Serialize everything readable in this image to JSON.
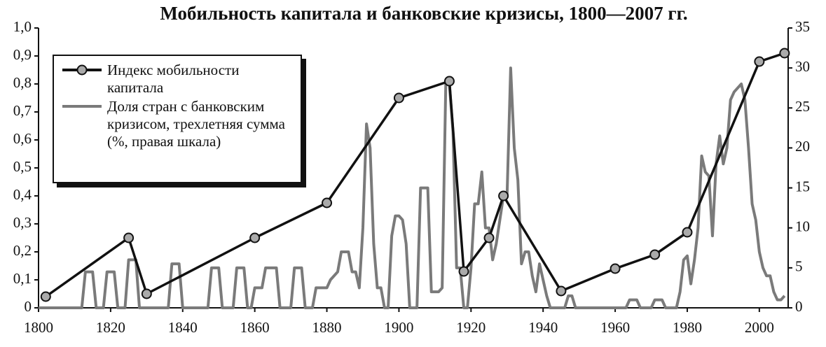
{
  "chart_data": {
    "type": "line",
    "title": "Мобильность капитала и банковские кризисы, 1800—2007 гг.",
    "xlim": [
      1800,
      2008
    ],
    "xticks": [
      1800,
      1820,
      1840,
      1860,
      1880,
      1900,
      1920,
      1940,
      1960,
      1980,
      2000
    ],
    "ylim": [
      0,
      1
    ],
    "yticks": [
      0,
      {
        "value": 0.1,
        "label": "0,1"
      },
      {
        "value": 0.2,
        "label": "0,2"
      },
      {
        "value": 0.3,
        "label": "0,3"
      },
      {
        "value": 0.4,
        "label": "0,4"
      },
      {
        "value": 0.5,
        "label": "0,5"
      },
      {
        "value": 0.6,
        "label": "0,6"
      },
      {
        "value": 0.7,
        "label": "0,7"
      },
      {
        "value": 0.8,
        "label": "0,8"
      },
      {
        "value": 0.9,
        "label": "0,9"
      },
      {
        "value": 1,
        "label": "1,0"
      }
    ],
    "y2lim": [
      0,
      35
    ],
    "y2ticks": [
      0,
      5,
      10,
      15,
      20,
      25,
      30,
      35
    ],
    "legend": "top-left",
    "series": [
      {
        "name": "Индекс мобильности капитала",
        "color": "#111111",
        "marker": true,
        "x": [
          1802,
          1825,
          1830,
          1860,
          1880,
          1900,
          1914,
          1918,
          1925,
          1929,
          1945,
          1960,
          1971,
          1980,
          2000,
          2007
        ],
        "values": [
          0.04,
          0.25,
          0.05,
          0.25,
          0.375,
          0.75,
          0.81,
          0.13,
          0.25,
          0.4,
          0.06,
          0.14,
          0.19,
          0.27,
          0.88,
          0.91
        ]
      },
      {
        "name": "Доля стран с банковским кризисом, трехлетняя сумма (%, правая шкала)",
        "color": "#7a7a7a",
        "axis": "y2",
        "x": [
          1800,
          1812,
          1813,
          1815,
          1816,
          1818,
          1819,
          1821,
          1822,
          1824,
          1825,
          1827,
          1828,
          1836,
          1837,
          1839,
          1840,
          1847,
          1848,
          1850,
          1851,
          1854,
          1855,
          1857,
          1858,
          1859,
          1860,
          1862,
          1863,
          1866,
          1867,
          1870,
          1871,
          1873,
          1874,
          1876,
          1877,
          1880,
          1881,
          1883,
          1884,
          1886,
          1887,
          1888,
          1889,
          1890,
          1891,
          1892,
          1893,
          1894,
          1895,
          1896,
          1897,
          1898,
          1899,
          1900,
          1901,
          1902,
          1903,
          1905,
          1906,
          1908,
          1909,
          1911,
          1912,
          1913,
          1914,
          1915,
          1916,
          1917,
          1918,
          1919,
          1920,
          1921,
          1922,
          1923,
          1924,
          1925,
          1926,
          1927,
          1928,
          1929,
          1930,
          1931,
          1932,
          1933,
          1934,
          1935,
          1936,
          1937,
          1938,
          1939,
          1940,
          1941,
          1942,
          1946,
          1947,
          1948,
          1949,
          1963,
          1964,
          1966,
          1967,
          1970,
          1971,
          1973,
          1974,
          1977,
          1978,
          1979,
          1980,
          1981,
          1982,
          1983,
          1984,
          1985,
          1986,
          1987,
          1988,
          1989,
          1990,
          1991,
          1992,
          1993,
          1994,
          1995,
          1996,
          1997,
          1998,
          1999,
          2000,
          2001,
          2002,
          2003,
          2004,
          2005,
          2006,
          2007
        ],
        "values": [
          0,
          0,
          4.5,
          4.5,
          0,
          0,
          4.5,
          4.5,
          0,
          0,
          6,
          6,
          0,
          0,
          5.5,
          5.5,
          0,
          0,
          5,
          5,
          0,
          0,
          5,
          5,
          0,
          0,
          2.5,
          2.5,
          5,
          5,
          0,
          0,
          5,
          5,
          0,
          0,
          2.5,
          2.5,
          3.5,
          4.5,
          7,
          7,
          4.5,
          4.5,
          2.5,
          10,
          23,
          20,
          8,
          2.5,
          2.5,
          0,
          0,
          9,
          11.5,
          11.5,
          11,
          8,
          0,
          0,
          15,
          15,
          2,
          2,
          2.5,
          28,
          28,
          22,
          5,
          5,
          0,
          0,
          5,
          13,
          13,
          17,
          10,
          10,
          6,
          8,
          11,
          14,
          14,
          30,
          20,
          16,
          5.5,
          7,
          7,
          4,
          2,
          5.5,
          3.5,
          1.5,
          0,
          0,
          1.5,
          1.5,
          0,
          0,
          1,
          1,
          0,
          0,
          1,
          1,
          0,
          0,
          2,
          6,
          6.5,
          3,
          6,
          10,
          19,
          17,
          16.5,
          9,
          18,
          21.5,
          18,
          20,
          26,
          27,
          27.5,
          28,
          26,
          20,
          13,
          11,
          7,
          5,
          4,
          4,
          2,
          1,
          1,
          1.5
        ]
      }
    ]
  }
}
